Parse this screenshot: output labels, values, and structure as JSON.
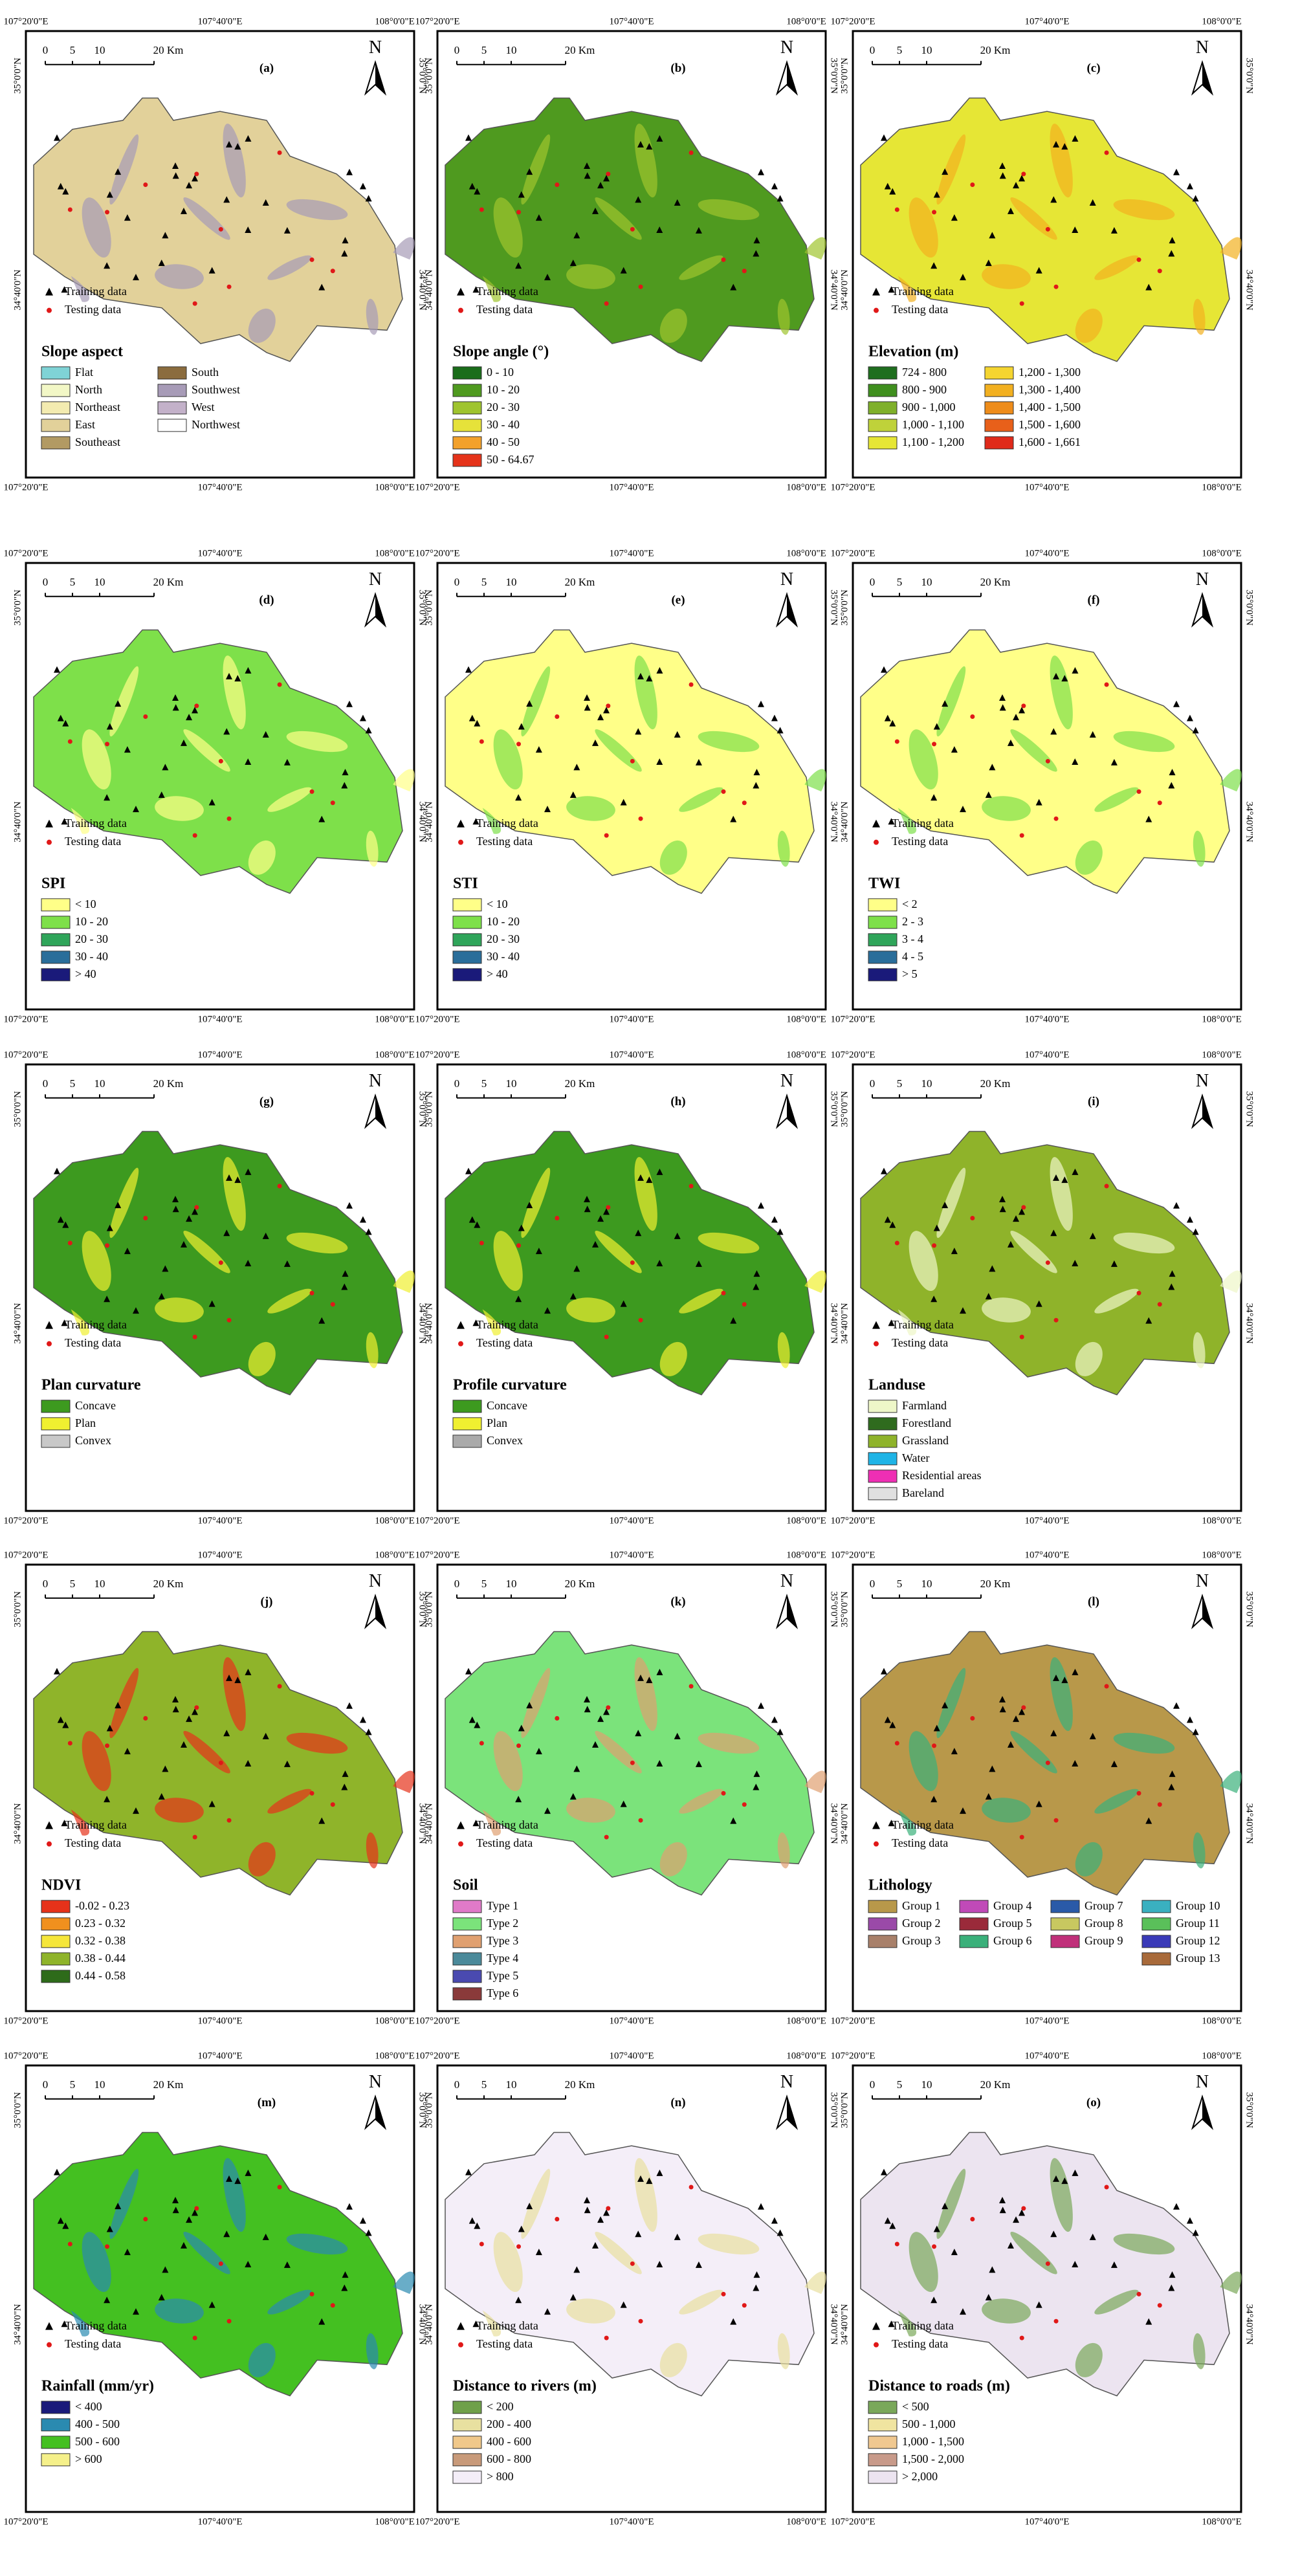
{
  "common": {
    "top_coords": [
      "107°20'0\"E",
      "107°40'0\"E",
      "108°0'0\"E"
    ],
    "side_coords": [
      "35°0'0\"N",
      "34°40'0\"N"
    ],
    "scale": [
      "0",
      "5",
      "10",
      "20 Km"
    ],
    "north": "N",
    "training": "Training data",
    "testing": "Testing data"
  },
  "panels": [
    {
      "letter": "(a)",
      "legend_title": "Slope aspect",
      "legend": [
        {
          "label": "Flat",
          "color": "#7fd3d6"
        },
        {
          "label": "North",
          "color": "#f2f7c6"
        },
        {
          "label": "Northeast",
          "color": "#f3ebb0"
        },
        {
          "label": "East",
          "color": "#e2d19a"
        },
        {
          "label": "Southeast",
          "color": "#b29a63"
        },
        {
          "label": "South",
          "color": "#8b6c3e"
        },
        {
          "label": "Southwest",
          "color": "#a79bb7"
        },
        {
          "label": "West",
          "color": "#c3b1c9"
        },
        {
          "label": "Northwest",
          "color": "#ffffff"
        }
      ]
    },
    {
      "letter": "(b)",
      "legend_title": "Slope angle (°)",
      "legend": [
        {
          "label": "0 - 10",
          "color": "#1a6d1a"
        },
        {
          "label": "10 - 20",
          "color": "#4f9a1f"
        },
        {
          "label": "20 - 30",
          "color": "#9fc42e"
        },
        {
          "label": "30 - 40",
          "color": "#e6e23a"
        },
        {
          "label": "40 - 50",
          "color": "#f3a12b"
        },
        {
          "label": "50 - 64.67",
          "color": "#e5331a"
        }
      ]
    },
    {
      "letter": "(c)",
      "legend_title": "Elevation (m)",
      "legend": [
        {
          "label": "724 - 800",
          "color": "#1e6e1e"
        },
        {
          "label": "800 - 900",
          "color": "#3f8f1e"
        },
        {
          "label": "900 - 1,000",
          "color": "#7fb02a"
        },
        {
          "label": "1,000 - 1,100",
          "color": "#bfd23a"
        },
        {
          "label": "1,100 - 1,200",
          "color": "#e6e635"
        },
        {
          "label": "1,200 - 1,300",
          "color": "#f5d530"
        },
        {
          "label": "1,300 - 1,400",
          "color": "#f2b020"
        },
        {
          "label": "1,400 - 1,500",
          "color": "#ee8c1a"
        },
        {
          "label": "1,500 - 1,600",
          "color": "#e8601a"
        },
        {
          "label": "1,600 - 1,661",
          "color": "#e02a1a"
        }
      ]
    },
    {
      "letter": "(d)",
      "legend_title": "SPI",
      "legend": [
        {
          "label": "< 10",
          "color": "#ffff88"
        },
        {
          "label": "10 - 20",
          "color": "#7ee04a"
        },
        {
          "label": "20 - 30",
          "color": "#2fa55a"
        },
        {
          "label": "30 - 40",
          "color": "#2a6e9a"
        },
        {
          "label": "> 40",
          "color": "#1a1a7a"
        }
      ]
    },
    {
      "letter": "(e)",
      "legend_title": "STI",
      "legend": [
        {
          "label": "< 10",
          "color": "#ffff88"
        },
        {
          "label": "10 - 20",
          "color": "#7ee04a"
        },
        {
          "label": "20 - 30",
          "color": "#2fa55a"
        },
        {
          "label": "30 - 40",
          "color": "#2a6e9a"
        },
        {
          "label": "> 40",
          "color": "#1a1a7a"
        }
      ]
    },
    {
      "letter": "(f)",
      "legend_title": "TWI",
      "legend": [
        {
          "label": "< 2",
          "color": "#ffff88"
        },
        {
          "label": "2 - 3",
          "color": "#7ee04a"
        },
        {
          "label": "3 - 4",
          "color": "#2fa55a"
        },
        {
          "label": "4 - 5",
          "color": "#2a6e9a"
        },
        {
          "label": "> 5",
          "color": "#1a1a7a"
        }
      ]
    },
    {
      "letter": "(g)",
      "legend_title": "Plan curvature",
      "legend": [
        {
          "label": "Concave",
          "color": "#3d9a1f"
        },
        {
          "label": "Plan",
          "color": "#f0f030"
        },
        {
          "label": "Convex",
          "color": "#c8c8c8"
        }
      ]
    },
    {
      "letter": "(h)",
      "legend_title": "Profile curvature",
      "legend": [
        {
          "label": "Concave",
          "color": "#3d9a1f"
        },
        {
          "label": "Plan",
          "color": "#f0f030"
        },
        {
          "label": "Convex",
          "color": "#aaaaaa"
        }
      ]
    },
    {
      "letter": "(i)",
      "legend_title": "Landuse",
      "legend": [
        {
          "label": "Farmland",
          "color": "#eef7c8"
        },
        {
          "label": "Forestland",
          "color": "#2f6b1e"
        },
        {
          "label": "Grassland",
          "color": "#8fb32a"
        },
        {
          "label": "Water",
          "color": "#1fb4e6"
        },
        {
          "label": "Residential areas",
          "color": "#ee2fb4"
        },
        {
          "label": "Bareland",
          "color": "#e0e0e0"
        }
      ]
    },
    {
      "letter": "(j)",
      "legend_title": "NDVI",
      "legend": [
        {
          "label": "-0.02 - 0.23",
          "color": "#e6321a"
        },
        {
          "label": "0.23 - 0.32",
          "color": "#f0901e"
        },
        {
          "label": "0.32 - 0.38",
          "color": "#f5e63a"
        },
        {
          "label": "0.38 - 0.44",
          "color": "#8fb42a"
        },
        {
          "label": "0.44 - 0.58",
          "color": "#2e6b1a"
        }
      ]
    },
    {
      "letter": "(k)",
      "legend_title": "Soil",
      "legend": [
        {
          "label": "Type 1",
          "color": "#e07ac8"
        },
        {
          "label": "Type 2",
          "color": "#7be37b"
        },
        {
          "label": "Type 3",
          "color": "#e0a070"
        },
        {
          "label": "Type 4",
          "color": "#4b8a9a"
        },
        {
          "label": "Type 5",
          "color": "#4a4ab0"
        },
        {
          "label": "Type 6",
          "color": "#8a3a3a"
        }
      ]
    },
    {
      "letter": "(l)",
      "legend_title": "Lithology",
      "legend": [
        {
          "label": "Group 1",
          "color": "#b8984a"
        },
        {
          "label": "Group 2",
          "color": "#9a4aa8"
        },
        {
          "label": "Group 3",
          "color": "#a8806a"
        },
        {
          "label": "Group 4",
          "color": "#c04ab8"
        },
        {
          "label": "Group 5",
          "color": "#9a2a3a"
        },
        {
          "label": "Group 6",
          "color": "#3ab07a"
        },
        {
          "label": "Group 7",
          "color": "#2a5aa8"
        },
        {
          "label": "Group 8",
          "color": "#c8c860"
        },
        {
          "label": "Group 9",
          "color": "#c0307a"
        },
        {
          "label": "Group 10",
          "color": "#3ab0c0"
        },
        {
          "label": "Group 11",
          "color": "#5ac05a"
        },
        {
          "label": "Group 12",
          "color": "#3a3ab8"
        },
        {
          "label": "Group 13",
          "color": "#a86a3a"
        }
      ]
    },
    {
      "letter": "(m)",
      "legend_title": "Rainfall (mm/yr)",
      "legend": [
        {
          "label": "< 400",
          "color": "#1a1a7a"
        },
        {
          "label": "400 - 500",
          "color": "#2a8ab0"
        },
        {
          "label": "500 - 600",
          "color": "#44c021"
        },
        {
          "label": "> 600",
          "color": "#f5f08a"
        }
      ]
    },
    {
      "letter": "(n)",
      "legend_title": "Distance to rivers (m)",
      "legend": [
        {
          "label": "< 200",
          "color": "#6fa04a"
        },
        {
          "label": "200 - 400",
          "color": "#e8e0a0"
        },
        {
          "label": "400 - 600",
          "color": "#f0c88a"
        },
        {
          "label": "600 - 800",
          "color": "#c89a7a"
        },
        {
          "label": "> 800",
          "color": "#f4eef8"
        }
      ]
    },
    {
      "letter": "(o)",
      "legend_title": "Distance to roads (m)",
      "legend": [
        {
          "label": "< 500",
          "color": "#7aa85a"
        },
        {
          "label": "500 - 1,000",
          "color": "#f0e4a0"
        },
        {
          "label": "1,000 - 1,500",
          "color": "#f0c890"
        },
        {
          "label": "1,500 - 2,000",
          "color": "#c89a8a"
        },
        {
          "label": "> 2,000",
          "color": "#ece4f0"
        }
      ]
    }
  ]
}
